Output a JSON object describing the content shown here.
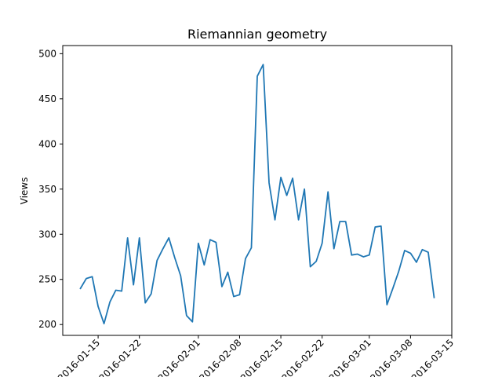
{
  "chart_data": {
    "type": "line",
    "title": "Riemannian geometry",
    "xlabel": "",
    "ylabel": "Views",
    "start_date": "2016-01-12",
    "xlim": [
      "2016-01-09",
      "2016-03-15"
    ],
    "ylim": [
      188,
      509
    ],
    "series_color": "#1f77b4",
    "yticks": [
      200,
      250,
      300,
      350,
      400,
      450,
      500
    ],
    "xticks": [
      {
        "date": "2016-01-15",
        "label": "2016-01-15"
      },
      {
        "date": "2016-01-22",
        "label": "2016-01-22"
      },
      {
        "date": "2016-02-01",
        "label": "2016-02-01"
      },
      {
        "date": "2016-02-08",
        "label": "2016-02-08"
      },
      {
        "date": "2016-02-15",
        "label": "2016-02-15"
      },
      {
        "date": "2016-02-22",
        "label": "2016-02-22"
      },
      {
        "date": "2016-03-01",
        "label": "2016-03-01"
      },
      {
        "date": "2016-03-08",
        "label": "2016-03-08"
      },
      {
        "date": "2016-03-15",
        "label": "2016-03-15"
      }
    ],
    "series": [
      {
        "name": "Views",
        "values": [
          240,
          251,
          253,
          220,
          201,
          225,
          238,
          237,
          296,
          244,
          296,
          224,
          234,
          271,
          284,
          296,
          274,
          254,
          210,
          203,
          290,
          266,
          294,
          291,
          242,
          258,
          231,
          233,
          273,
          285,
          475,
          488,
          357,
          316,
          363,
          343,
          362,
          316,
          350,
          264,
          270,
          290,
          347,
          284,
          314,
          314,
          277,
          278,
          275,
          277,
          308,
          309,
          222,
          240,
          259,
          282,
          279,
          269,
          283,
          280,
          230
        ]
      }
    ]
  }
}
